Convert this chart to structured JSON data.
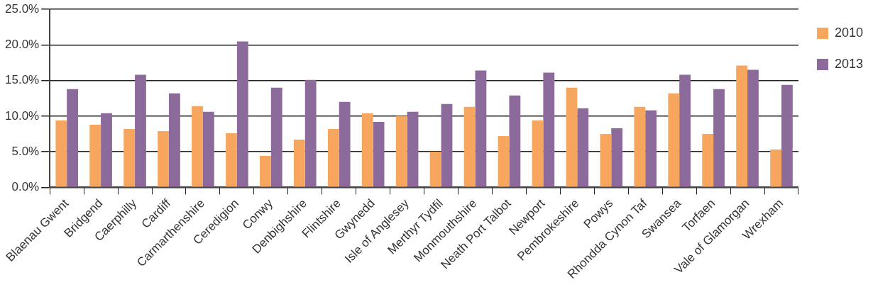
{
  "chart_data": {
    "type": "bar",
    "categories": [
      "Blaenau Gwent",
      "Bridgend",
      "Caerphilly",
      "Cardiff",
      "Carmarthenshire",
      "Ceredigion",
      "Conwy",
      "Denbighshire",
      "Flintshire",
      "Gwynedd",
      "Isle of Anglesey",
      "Merthyr Tydfil",
      "Monmouthshire",
      "Neath Port Talbot",
      "Newport",
      "Pembrokeshire",
      "Powys",
      "Rhondda Cynon Taf",
      "Swansea",
      "Torfaen",
      "Vale of Glamorgan",
      "Wrexham"
    ],
    "series": [
      {
        "name": "2010",
        "color": "#f7a660",
        "values": [
          9.4,
          8.8,
          8.2,
          7.9,
          11.4,
          7.6,
          4.4,
          6.7,
          8.2,
          10.4,
          10.0,
          5.0,
          11.3,
          7.2,
          9.4,
          14.0,
          7.5,
          11.3,
          13.2,
          7.5,
          17.1,
          5.3
        ]
      },
      {
        "name": "2013",
        "color": "#8c6a99",
        "values": [
          13.8,
          10.4,
          15.8,
          13.2,
          10.6,
          20.5,
          14.0,
          15.1,
          12.0,
          9.2,
          10.6,
          11.7,
          16.4,
          12.9,
          16.1,
          11.1,
          8.3,
          10.8,
          15.8,
          13.8,
          16.5,
          14.4
        ]
      }
    ],
    "ylim": [
      0,
      25
    ],
    "yticks": [
      {
        "value": 0,
        "label": "0.0%"
      },
      {
        "value": 5,
        "label": "5.0%"
      },
      {
        "value": 10,
        "label": "10.0%"
      },
      {
        "value": 15,
        "label": "15.0%"
      },
      {
        "value": 20,
        "label": "20.0%"
      },
      {
        "value": 25,
        "label": "25.0%"
      }
    ],
    "grid": "y",
    "legend": "top right"
  }
}
